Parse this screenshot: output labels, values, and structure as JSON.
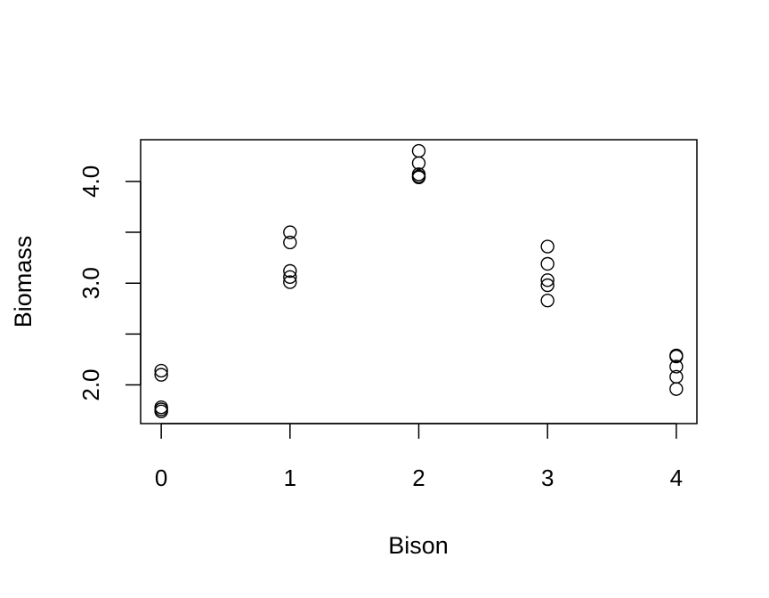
{
  "chart_data": {
    "type": "scatter",
    "title": "",
    "xlabel": "Bison",
    "ylabel": "Biomass",
    "xlim": [
      -0.16,
      4.16
    ],
    "ylim": [
      1.62,
      4.41
    ],
    "x_ticks": [
      0,
      1,
      2,
      3,
      4
    ],
    "x_tick_labels": [
      "0",
      "1",
      "2",
      "3",
      "4"
    ],
    "y_ticks": [
      2.0,
      2.5,
      3.0,
      3.5,
      4.0
    ],
    "y_tick_labels": [
      "2.0",
      "",
      "3.0",
      "",
      "4.0"
    ],
    "grid": false,
    "legend": "none",
    "marker": "open-circle",
    "series": [
      {
        "x": [
          0,
          0,
          0,
          0,
          0,
          1,
          1,
          1,
          1,
          1,
          2,
          2,
          2,
          2,
          2,
          3,
          3,
          3,
          3,
          3,
          4,
          4,
          4,
          4,
          4
        ],
        "y": [
          2.14,
          2.1,
          1.78,
          1.76,
          1.74,
          3.5,
          3.4,
          3.12,
          3.06,
          3.01,
          4.3,
          4.18,
          4.07,
          4.05,
          4.04,
          3.36,
          3.19,
          3.03,
          2.98,
          2.83,
          2.29,
          2.28,
          2.18,
          2.08,
          1.96
        ]
      }
    ]
  }
}
